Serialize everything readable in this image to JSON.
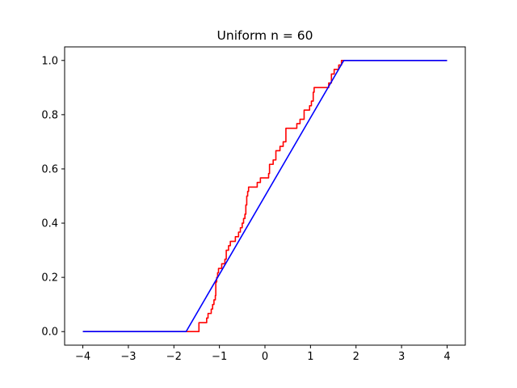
{
  "chart_data": {
    "type": "line",
    "title": "Uniform n = 60",
    "xlabel": "",
    "ylabel": "",
    "xlim": [
      -4.4,
      4.4
    ],
    "ylim": [
      -0.05,
      1.05
    ],
    "xticks": [
      -4,
      -3,
      -2,
      -1,
      0,
      1,
      2,
      3,
      4
    ],
    "xtick_labels": [
      "−4",
      "−3",
      "−2",
      "−1",
      "0",
      "1",
      "2",
      "3",
      "4"
    ],
    "yticks": [
      0.0,
      0.2,
      0.4,
      0.6,
      0.8,
      1.0
    ],
    "ytick_labels": [
      "0.0",
      "0.2",
      "0.4",
      "0.6",
      "0.8",
      "1.0"
    ],
    "grid": false,
    "legend": "none",
    "series": [
      {
        "color": "#ff0000",
        "step": true,
        "points": [
          [
            -4.0,
            0.0
          ],
          [
            -1.72,
            0.0
          ],
          [
            -1.65,
            0.0
          ],
          [
            -1.5,
            0.0
          ],
          [
            -1.45,
            0.033
          ],
          [
            -1.3,
            0.033
          ],
          [
            -1.28,
            0.05
          ],
          [
            -1.25,
            0.067
          ],
          [
            -1.2,
            0.067
          ],
          [
            -1.18,
            0.083
          ],
          [
            -1.15,
            0.1
          ],
          [
            -1.12,
            0.117
          ],
          [
            -1.09,
            0.133
          ],
          [
            -1.08,
            0.183
          ],
          [
            -1.06,
            0.2
          ],
          [
            -1.04,
            0.217
          ],
          [
            -1.02,
            0.233
          ],
          [
            -0.95,
            0.25
          ],
          [
            -0.88,
            0.267
          ],
          [
            -0.85,
            0.3
          ],
          [
            -0.8,
            0.317
          ],
          [
            -0.76,
            0.333
          ],
          [
            -0.65,
            0.35
          ],
          [
            -0.58,
            0.367
          ],
          [
            -0.54,
            0.383
          ],
          [
            -0.5,
            0.4
          ],
          [
            -0.47,
            0.417
          ],
          [
            -0.44,
            0.433
          ],
          [
            -0.42,
            0.467
          ],
          [
            -0.4,
            0.5
          ],
          [
            -0.38,
            0.517
          ],
          [
            -0.36,
            0.533
          ],
          [
            -0.17,
            0.55
          ],
          [
            -0.1,
            0.567
          ],
          [
            0.08,
            0.583
          ],
          [
            0.1,
            0.617
          ],
          [
            0.18,
            0.633
          ],
          [
            0.24,
            0.667
          ],
          [
            0.33,
            0.683
          ],
          [
            0.4,
            0.7
          ],
          [
            0.46,
            0.75
          ],
          [
            0.7,
            0.767
          ],
          [
            0.77,
            0.783
          ],
          [
            0.86,
            0.817
          ],
          [
            0.98,
            0.833
          ],
          [
            1.02,
            0.85
          ],
          [
            1.06,
            0.883
          ],
          [
            1.08,
            0.9
          ],
          [
            1.4,
            0.917
          ],
          [
            1.46,
            0.95
          ],
          [
            1.52,
            0.967
          ],
          [
            1.62,
            0.983
          ],
          [
            1.68,
            1.0
          ],
          [
            4.0,
            1.0
          ]
        ]
      },
      {
        "color": "#0000ff",
        "step": false,
        "points": [
          [
            -4.0,
            0.0
          ],
          [
            -1.732,
            0.0
          ],
          [
            1.732,
            1.0
          ],
          [
            4.0,
            1.0
          ]
        ]
      }
    ]
  }
}
